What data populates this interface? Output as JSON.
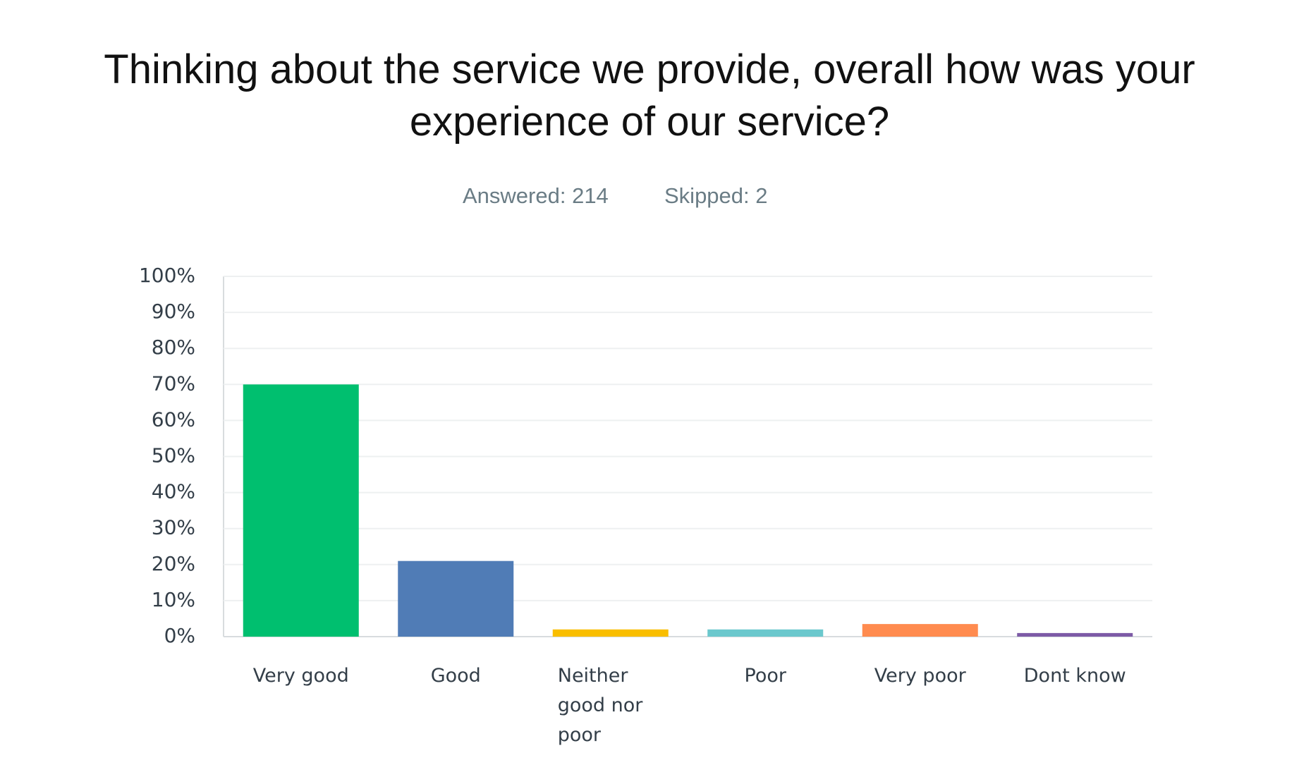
{
  "chart_data": {
    "type": "bar",
    "title": "Thinking about the service we provide, overall how was your experience of our service?",
    "answered": "Answered: 214",
    "skipped": "Skipped: 2",
    "categories": [
      "Very good",
      "Good",
      "Neither good nor poor",
      "Poor",
      "Very poor",
      "Dont know"
    ],
    "values": [
      70,
      21,
      2,
      2,
      3.5,
      1
    ],
    "colors": [
      "#00bf6f",
      "#507cb6",
      "#f9be00",
      "#6bc8cd",
      "#ff8b4f",
      "#7d5ba6"
    ],
    "ylim": [
      0,
      100
    ],
    "yticks": [
      {
        "value": 0,
        "label": "0%"
      },
      {
        "value": 10,
        "label": "10%"
      },
      {
        "value": 20,
        "label": "20%"
      },
      {
        "value": 30,
        "label": "30%"
      },
      {
        "value": 40,
        "label": "40%"
      },
      {
        "value": 50,
        "label": "50%"
      },
      {
        "value": 60,
        "label": "60%"
      },
      {
        "value": 70,
        "label": "70%"
      },
      {
        "value": 80,
        "label": "80%"
      },
      {
        "value": 90,
        "label": "90%"
      },
      {
        "value": 100,
        "label": "100%"
      }
    ],
    "grid": true
  }
}
